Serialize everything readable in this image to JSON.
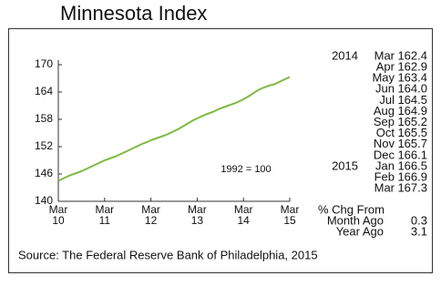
{
  "chart_data": {
    "type": "line",
    "title": "Minnesota Index",
    "annotation": "1992 = 100",
    "source": "Source:  The Federal Reserve Bank of Philadelphia, 2015",
    "categories": [
      "Mar 10",
      null,
      null,
      null,
      null,
      null,
      null,
      null,
      null,
      null,
      null,
      null,
      "Mar 11",
      null,
      null,
      null,
      null,
      null,
      null,
      null,
      null,
      null,
      null,
      null,
      "Mar 12",
      null,
      null,
      null,
      null,
      null,
      null,
      null,
      null,
      null,
      null,
      null,
      "Mar 13",
      null,
      null,
      null,
      null,
      null,
      null,
      null,
      null,
      null,
      null,
      null,
      "Mar 14",
      null,
      null,
      null,
      null,
      null,
      null,
      null,
      null,
      null,
      null,
      null,
      "Mar 15"
    ],
    "series": [
      {
        "name": "Minnesota Index",
        "color": "#7dbb42",
        "values": [
          144.5,
          144.9,
          145.3,
          145.7,
          146.0,
          146.3,
          146.6,
          147.0,
          147.4,
          147.8,
          148.2,
          148.6,
          149.0,
          149.3,
          149.6,
          149.9,
          150.3,
          150.7,
          151.1,
          151.5,
          151.9,
          152.3,
          152.7,
          153.0,
          153.4,
          153.7,
          154.0,
          154.3,
          154.6,
          155.0,
          155.4,
          155.8,
          156.3,
          156.8,
          157.3,
          157.8,
          158.2,
          158.6,
          159.0,
          159.3,
          159.6,
          160.0,
          160.4,
          160.7,
          161.0,
          161.3,
          161.6,
          162.0,
          162.4,
          162.9,
          163.4,
          164.0,
          164.5,
          164.9,
          165.2,
          165.5,
          165.7,
          166.1,
          166.5,
          166.9,
          167.3
        ]
      }
    ],
    "ylim": [
      140,
      171
    ],
    "yticks": [
      140,
      146,
      152,
      158,
      164,
      170
    ],
    "grid": false
  },
  "table": {
    "rows": [
      {
        "year": "2014",
        "month": "Mar",
        "value": "162.4"
      },
      {
        "month": "Apr",
        "value": "162.9"
      },
      {
        "month": "May",
        "value": "163.4"
      },
      {
        "month": "Jun",
        "value": "164.0"
      },
      {
        "month": "Jul",
        "value": "164.5"
      },
      {
        "month": "Aug",
        "value": "164.9"
      },
      {
        "month": "Sep",
        "value": "165.2"
      },
      {
        "month": "Oct",
        "value": "165.5"
      },
      {
        "month": "Nov",
        "value": "165.7"
      },
      {
        "month": "Dec",
        "value": "166.1"
      },
      {
        "year": "2015",
        "month": "Jan",
        "value": "166.5"
      },
      {
        "month": "Feb",
        "value": "166.9"
      },
      {
        "month": "Mar",
        "value": "167.3"
      }
    ],
    "change": {
      "header": "% Chg From",
      "rows": [
        {
          "label": "Month Ago",
          "value": "0.3"
        },
        {
          "label": "Year Ago",
          "value": "3.1"
        }
      ]
    }
  }
}
